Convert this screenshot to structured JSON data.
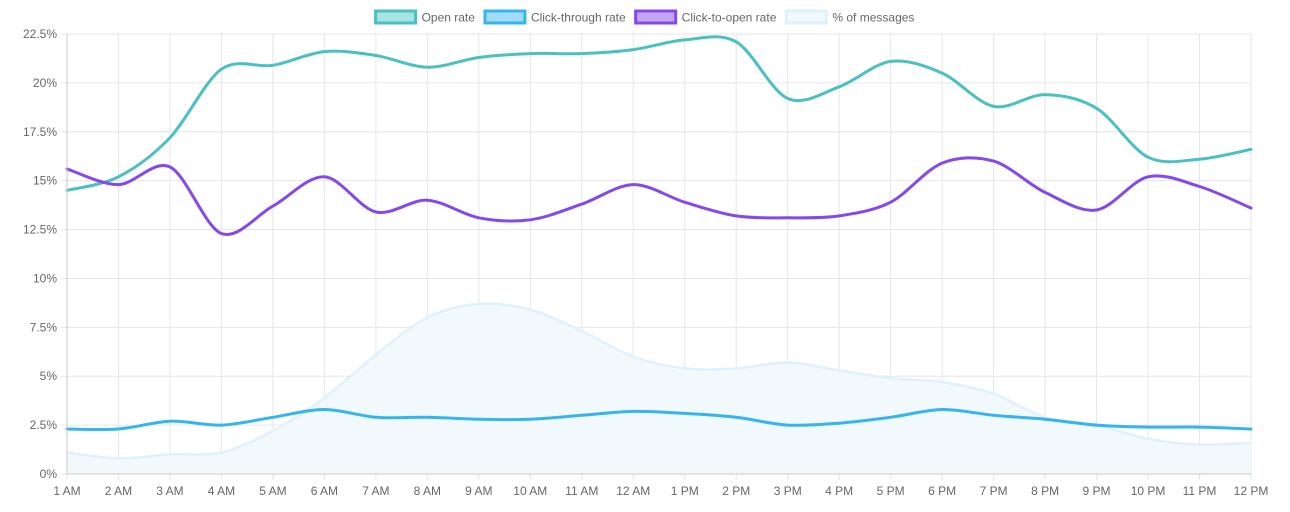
{
  "chart_data": {
    "type": "line",
    "title": "",
    "xlabel": "",
    "ylabel": "",
    "categories": [
      "1 AM",
      "2 AM",
      "3 AM",
      "4 AM",
      "5 AM",
      "6 AM",
      "7 AM",
      "8 AM",
      "9 AM",
      "10 AM",
      "11 AM",
      "12 AM",
      "1 PM",
      "2 PM",
      "3 PM",
      "4 PM",
      "5 PM",
      "6 PM",
      "7 PM",
      "8 PM",
      "9 PM",
      "10 PM",
      "11 PM",
      "12 PM"
    ],
    "y_ticks": [
      "0%",
      "2.5%",
      "5%",
      "7.5%",
      "10%",
      "12.5%",
      "15%",
      "17.5%",
      "20%",
      "22.5%"
    ],
    "ylim": [
      0,
      22.5
    ],
    "grid": true,
    "legend_position": "top-center",
    "series": [
      {
        "name": "Open rate",
        "kind": "line",
        "color": "#4bc0c0",
        "fill": "#a6e3e3",
        "values": [
          14.5,
          15.2,
          17.2,
          20.7,
          20.9,
          21.6,
          21.4,
          20.8,
          21.3,
          21.5,
          21.5,
          21.7,
          22.2,
          22.1,
          19.2,
          19.8,
          21.1,
          20.5,
          18.8,
          19.4,
          18.7,
          16.2,
          16.1,
          16.6
        ]
      },
      {
        "name": "Click-through rate",
        "kind": "line",
        "color": "#36b5ec",
        "fill": "#9fdcf7",
        "values": [
          2.3,
          2.3,
          2.7,
          2.5,
          2.9,
          3.3,
          2.9,
          2.9,
          2.8,
          2.8,
          3.0,
          3.2,
          3.1,
          2.9,
          2.5,
          2.6,
          2.9,
          3.3,
          3.0,
          2.8,
          2.5,
          2.4,
          2.4,
          2.3
        ]
      },
      {
        "name": "Click-to-open rate",
        "kind": "line",
        "color": "#8549ea",
        "fill": "#c4a6f5",
        "values": [
          15.6,
          14.8,
          15.7,
          12.3,
          13.7,
          15.2,
          13.4,
          14.0,
          13.1,
          13.0,
          13.8,
          14.8,
          13.9,
          13.2,
          13.1,
          13.2,
          13.9,
          15.9,
          16.0,
          14.4,
          13.5,
          15.2,
          14.7,
          13.6
        ]
      },
      {
        "name": "% of messages",
        "kind": "area",
        "color": "#dff1fb",
        "fill": "#f2f9fd",
        "values": [
          1.1,
          0.8,
          1.0,
          1.1,
          2.2,
          3.9,
          6.1,
          8.0,
          8.7,
          8.4,
          7.3,
          6.0,
          5.4,
          5.4,
          5.7,
          5.3,
          4.9,
          4.7,
          4.1,
          2.9,
          2.5,
          1.8,
          1.5,
          1.6
        ]
      }
    ]
  }
}
